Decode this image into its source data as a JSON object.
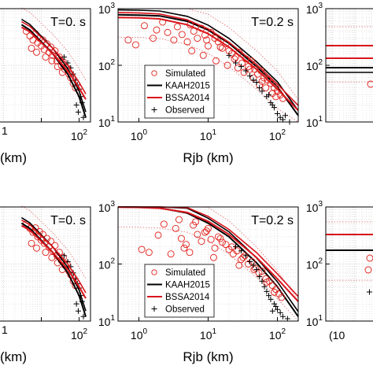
{
  "colors": {
    "simulated": "#e0201b",
    "kaah": "#000000",
    "bssa": "#d9141c",
    "observed": "#000000",
    "grid": "#bfbfbf",
    "bound": "#e06a6a"
  },
  "legend": {
    "simulated": "Simulated",
    "kaah": "KAAH2015",
    "bssa": "BSSA2014",
    "observed": "Observed"
  },
  "panels": {
    "top_left": {
      "title": "T=0. s",
      "xlabel": "(km)",
      "xtick_partial": "0"
    },
    "top_mid": {
      "title": "T=0.2 s",
      "xlabel": "Rjb (km)"
    },
    "top_right": {
      "title": ""
    },
    "bot_left": {
      "title": "T=0. s",
      "xlabel": "(km)",
      "xtick_partial": "0"
    },
    "bot_mid": {
      "title": "T=0.2 s",
      "xlabel": "Rjb (km)"
    },
    "bot_right": {
      "title": "",
      "xtick_partial": "(10"
    }
  },
  "axis_ticks": {
    "base": "10",
    "y_exponents": [
      "3",
      "2",
      "1"
    ],
    "x_exponents": [
      "0",
      "1",
      "2"
    ]
  },
  "chart_data": [
    {
      "type": "scatter",
      "title": "T=0.2 s",
      "xlabel": "Rjb (km)",
      "xscale": "log",
      "yscale": "log",
      "xlim": [
        0.5,
        200
      ],
      "ylim": [
        10,
        1000
      ],
      "legend_position": "bottom-left",
      "series": [
        {
          "name": "KAAH2015",
          "kind": "line",
          "x": [
            0.5,
            1,
            2,
            5,
            10,
            20,
            50,
            100,
            200
          ],
          "y": [
            780,
            770,
            745,
            600,
            420,
            245,
            95,
            42,
            13
          ]
        },
        {
          "name": "BSSA2014",
          "kind": "line",
          "x": [
            0.5,
            1,
            2,
            5,
            10,
            20,
            50,
            100,
            200
          ],
          "y": [
            700,
            690,
            660,
            520,
            360,
            210,
            85,
            38,
            16
          ]
        },
        {
          "name": "Simulated",
          "kind": "scatter",
          "x": [
            0.7,
            0.9,
            1.2,
            1.6,
            1.8,
            2.2,
            2.6,
            3.2,
            3.6,
            4.2,
            5,
            5.5,
            6.2,
            7,
            8,
            9,
            10,
            11,
            12.5,
            14,
            16,
            18,
            20,
            22,
            25,
            28,
            31,
            35,
            38,
            42,
            47,
            52,
            58,
            64,
            72,
            80,
            90,
            100,
            110,
            120,
            5.8,
            8.5,
            13,
            19,
            27,
            33,
            45,
            55,
            68,
            85,
            95,
            9.5,
            15,
            24,
            40,
            60
          ],
          "y": [
            280,
            230,
            500,
            300,
            420,
            580,
            380,
            280,
            480,
            350,
            260,
            520,
            400,
            300,
            450,
            340,
            220,
            380,
            300,
            260,
            200,
            240,
            180,
            160,
            140,
            170,
            110,
            130,
            95,
            120,
            85,
            70,
            80,
            60,
            55,
            48,
            40,
            35,
            30,
            26,
            180,
            150,
            120,
            100,
            90,
            75,
            60,
            45,
            40,
            32,
            28,
            280,
            210,
            130,
            85,
            52
          ]
        },
        {
          "name": "Observed",
          "kind": "scatter",
          "x": [
            20,
            25,
            30,
            35,
            40,
            45,
            50,
            55,
            60,
            70,
            80,
            90,
            100,
            110,
            120,
            150,
            75,
            85,
            130
          ],
          "y": [
            150,
            110,
            95,
            80,
            65,
            55,
            50,
            40,
            35,
            28,
            22,
            18,
            14,
            12,
            11,
            10,
            30,
            20,
            13
          ]
        }
      ]
    },
    {
      "type": "scatter",
      "title": "T=0.2 s",
      "xlabel": "Rjb (km)",
      "xscale": "log",
      "yscale": "log",
      "xlim": [
        0.5,
        200
      ],
      "ylim": [
        10,
        1000
      ],
      "legend_position": "bottom-left",
      "series": [
        {
          "name": "KAAH2015",
          "kind": "line",
          "x": [
            0.5,
            1,
            2,
            5,
            10,
            20,
            50,
            100,
            200
          ],
          "y": [
            1000,
            990,
            960,
            780,
            520,
            300,
            105,
            40,
            12
          ]
        },
        {
          "name": "BSSA2014",
          "kind": "line",
          "x": [
            0.5,
            1,
            2,
            5,
            10,
            20,
            50,
            100,
            200
          ],
          "y": [
            990,
            980,
            950,
            800,
            560,
            330,
            130,
            55,
            22
          ]
        },
        {
          "name": "Simulated",
          "kind": "scatter",
          "x": [
            1.1,
            1.4,
            1.9,
            2.3,
            2.9,
            3.4,
            4.1,
            4.8,
            5.4,
            6.1,
            7,
            8,
            9,
            10,
            11,
            12.5,
            14,
            16,
            18,
            20,
            23,
            26,
            30,
            34,
            38,
            43,
            48,
            54,
            60,
            68,
            76,
            85,
            95,
            105,
            115,
            3.8,
            6.6,
            9.5,
            15,
            22,
            32,
            46,
            70,
            90,
            4.5,
            12,
            28
          ],
          "y": [
            180,
            160,
            320,
            500,
            150,
            420,
            280,
            220,
            160,
            480,
            330,
            250,
            360,
            420,
            270,
            190,
            300,
            240,
            220,
            180,
            150,
            170,
            120,
            140,
            100,
            110,
            85,
            70,
            75,
            55,
            50,
            42,
            36,
            30,
            26,
            600,
            550,
            380,
            280,
            200,
            130,
            80,
            48,
            32,
            190,
            130,
            95
          ]
        },
        {
          "name": "Observed",
          "kind": "scatter",
          "x": [
            25,
            30,
            35,
            40,
            45,
            50,
            55,
            60,
            65,
            70,
            80,
            90,
            100,
            110,
            120,
            140,
            75,
            85,
            95
          ],
          "y": [
            200,
            170,
            140,
            110,
            95,
            80,
            60,
            50,
            40,
            33,
            24,
            20,
            16,
            14,
            12,
            11,
            28,
            15,
            18
          ]
        }
      ]
    }
  ]
}
